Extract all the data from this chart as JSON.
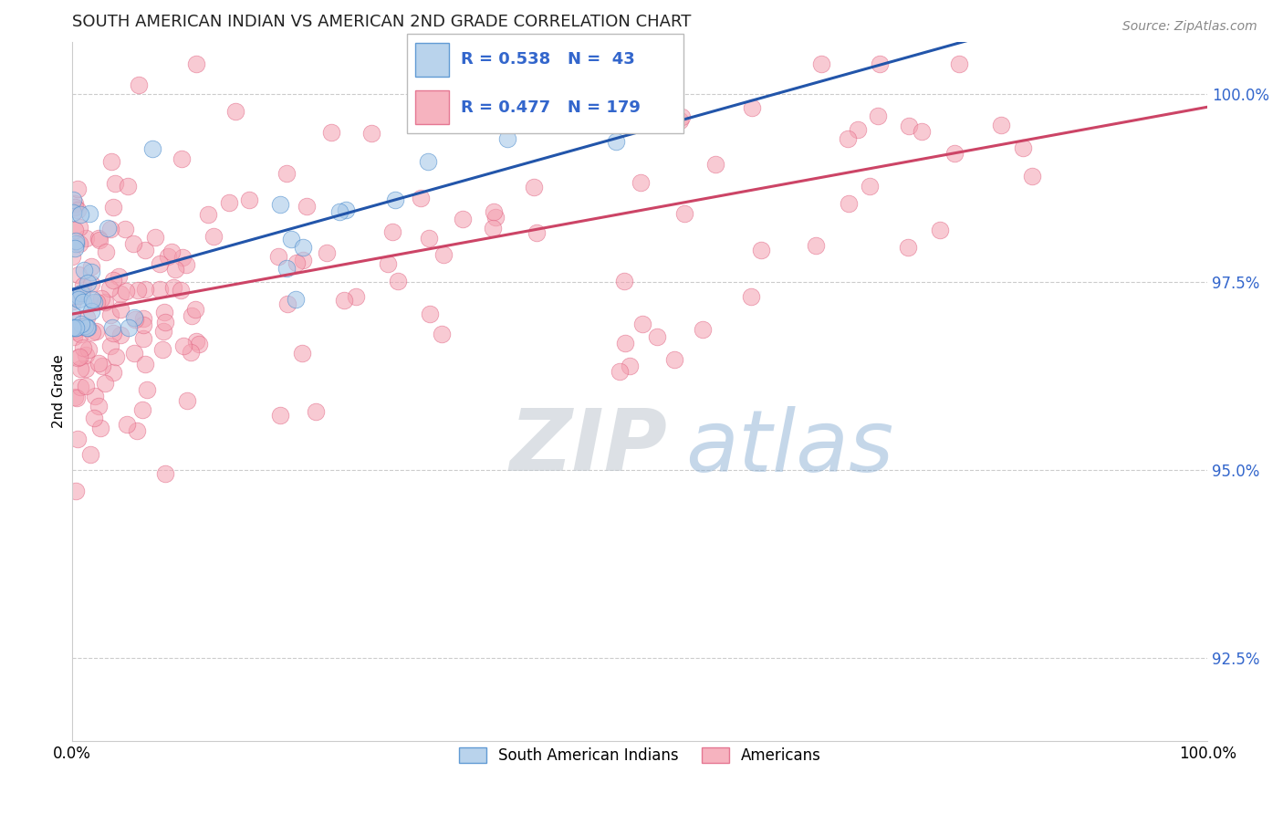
{
  "title": "SOUTH AMERICAN INDIAN VS AMERICAN 2ND GRADE CORRELATION CHART",
  "source_text": "Source: ZipAtlas.com",
  "ylabel": "2nd Grade",
  "y_tick_labels": [
    "100.0%",
    "97.5%",
    "95.0%",
    "92.5%"
  ],
  "y_tick_values": [
    1.0,
    0.975,
    0.95,
    0.925
  ],
  "xlim": [
    0.0,
    1.0
  ],
  "ylim": [
    0.914,
    1.007
  ],
  "watermark_zip": "ZIP",
  "watermark_atlas": "atlas",
  "legend_blue_r": "R = 0.538",
  "legend_blue_n": "N =  43",
  "legend_pink_r": "R = 0.477",
  "legend_pink_n": "N = 179",
  "blue_fill": "#a8c8e8",
  "blue_edge": "#4488cc",
  "blue_line": "#2255aa",
  "pink_fill": "#f4a0b0",
  "pink_edge": "#e06080",
  "pink_line": "#cc4466",
  "background_color": "#ffffff",
  "title_color": "#222222",
  "source_color": "#888888",
  "ytick_color": "#3366cc",
  "grid_color": "#cccccc"
}
